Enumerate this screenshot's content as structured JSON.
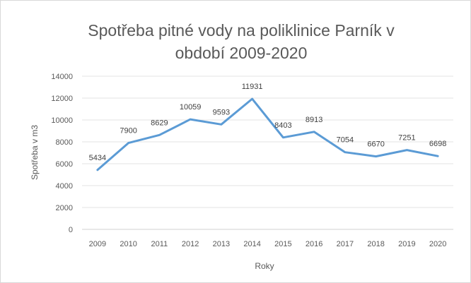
{
  "chart_data": {
    "type": "line",
    "title_lines": [
      "Spotřeba pitné vody na poliklinice Parník v",
      "období 2009-2020"
    ],
    "xlabel": "Roky",
    "ylabel": "Spotřeba v m3",
    "categories": [
      "2009",
      "2010",
      "2011",
      "2012",
      "2013",
      "2014",
      "2015",
      "2016",
      "2017",
      "2018",
      "2019",
      "2020"
    ],
    "series": [
      {
        "values": [
          5434,
          7900,
          8629,
          10059,
          9593,
          11931,
          8403,
          8913,
          7054,
          6670,
          7251,
          6698
        ],
        "color": "#5b9bd5"
      }
    ],
    "yticks": [
      "0",
      "2000",
      "4000",
      "6000",
      "8000",
      "10000",
      "12000",
      "14000"
    ],
    "ylim": [
      0,
      14000
    ],
    "grid": true,
    "legend": "none"
  }
}
